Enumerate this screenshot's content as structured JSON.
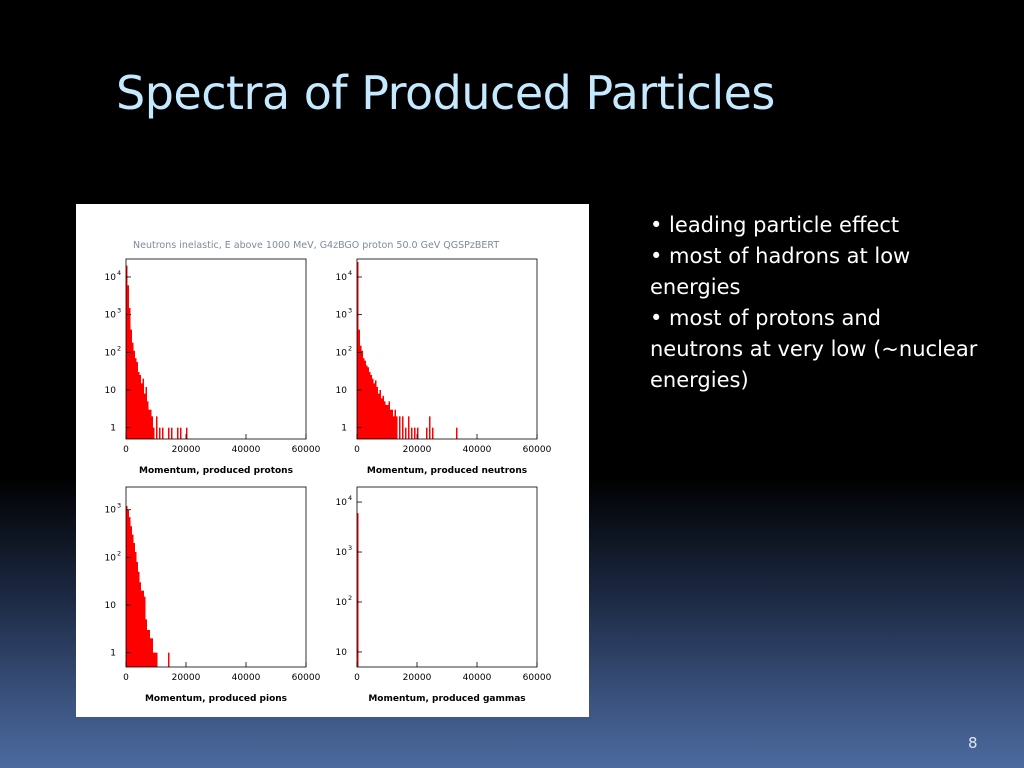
{
  "slide": {
    "title": "Spectra of Produced Particles",
    "bullets": [
      "• leading particle effect",
      "• most of hadrons at low energies",
      "• most of protons and neutrons at very low (~nuclear energies)"
    ],
    "page_number": "8"
  },
  "figure": {
    "header": "Neutrons inelastic, E above 1000 MeV,  G4zBGO proton 50.0 GeV QGSPzBERT",
    "colors": {
      "bar": "#ff0000",
      "axis": "#000000",
      "header": "#7f8a9c"
    }
  },
  "chart_data": [
    {
      "type": "bar",
      "xlabel": "Momentum, produced protons",
      "xlim": [
        0,
        60000
      ],
      "x_ticks": [
        "0",
        "20000",
        "40000",
        "60000"
      ],
      "ylog": true,
      "ylim": [
        0.5,
        30000
      ],
      "y_ticks": [
        {
          "base": "1",
          "exp": ""
        },
        {
          "base": "10",
          "exp": ""
        },
        {
          "base": "10",
          "exp": "2"
        },
        {
          "base": "10",
          "exp": "3"
        },
        {
          "base": "10",
          "exp": "4"
        }
      ],
      "bin_width": 500,
      "bins": [
        [
          0,
          20000
        ],
        [
          500,
          6000
        ],
        [
          1000,
          1500
        ],
        [
          1500,
          400
        ],
        [
          2000,
          180
        ],
        [
          2500,
          110
        ],
        [
          3000,
          70
        ],
        [
          3500,
          55
        ],
        [
          4000,
          30
        ],
        [
          4500,
          25
        ],
        [
          5000,
          15
        ],
        [
          5500,
          20
        ],
        [
          6000,
          8
        ],
        [
          6500,
          12
        ],
        [
          7000,
          5
        ],
        [
          7500,
          3
        ],
        [
          8000,
          3
        ],
        [
          8500,
          2
        ],
        [
          9000,
          1
        ],
        [
          10000,
          2
        ],
        [
          11000,
          1
        ],
        [
          12000,
          1
        ],
        [
          14000,
          1
        ],
        [
          15000,
          1
        ],
        [
          17000,
          1
        ],
        [
          18000,
          1
        ],
        [
          20000,
          1
        ]
      ]
    },
    {
      "type": "bar",
      "xlabel": "Momentum, produced neutrons",
      "xlim": [
        0,
        60000
      ],
      "x_ticks": [
        "0",
        "20000",
        "40000",
        "60000"
      ],
      "ylog": true,
      "ylim": [
        0.5,
        30000
      ],
      "y_ticks": [
        {
          "base": "1",
          "exp": ""
        },
        {
          "base": "10",
          "exp": ""
        },
        {
          "base": "10",
          "exp": "2"
        },
        {
          "base": "10",
          "exp": "3"
        },
        {
          "base": "10",
          "exp": "4"
        }
      ],
      "bin_width": 500,
      "bins": [
        [
          0,
          25000
        ],
        [
          500,
          400
        ],
        [
          1000,
          150
        ],
        [
          1500,
          110
        ],
        [
          2000,
          70
        ],
        [
          2500,
          60
        ],
        [
          3000,
          45
        ],
        [
          3500,
          40
        ],
        [
          4000,
          30
        ],
        [
          4500,
          25
        ],
        [
          5000,
          20
        ],
        [
          5500,
          15
        ],
        [
          6000,
          18
        ],
        [
          6500,
          12
        ],
        [
          7000,
          8
        ],
        [
          7500,
          10
        ],
        [
          8000,
          6
        ],
        [
          8500,
          7
        ],
        [
          9000,
          5
        ],
        [
          9500,
          4
        ],
        [
          10000,
          4
        ],
        [
          10500,
          5
        ],
        [
          11000,
          3
        ],
        [
          11500,
          3
        ],
        [
          12000,
          2
        ],
        [
          12500,
          3
        ],
        [
          13000,
          2
        ],
        [
          14000,
          2
        ],
        [
          15000,
          2
        ],
        [
          16000,
          1
        ],
        [
          17000,
          2
        ],
        [
          18000,
          1
        ],
        [
          19000,
          1
        ],
        [
          20000,
          1
        ],
        [
          23000,
          1
        ],
        [
          24000,
          2
        ],
        [
          25000,
          1
        ],
        [
          33000,
          1
        ]
      ]
    },
    {
      "type": "bar",
      "xlabel": "Momentum, produced pions",
      "xlim": [
        0,
        60000
      ],
      "x_ticks": [
        "0",
        "20000",
        "40000",
        "60000"
      ],
      "ylog": true,
      "ylim": [
        0.5,
        3000
      ],
      "y_ticks": [
        {
          "base": "1",
          "exp": ""
        },
        {
          "base": "10",
          "exp": ""
        },
        {
          "base": "10",
          "exp": "2"
        },
        {
          "base": "10",
          "exp": "3"
        }
      ],
      "bin_width": 500,
      "bins": [
        [
          0,
          1200
        ],
        [
          500,
          1000
        ],
        [
          1000,
          700
        ],
        [
          1500,
          450
        ],
        [
          2000,
          300
        ],
        [
          2500,
          200
        ],
        [
          3000,
          130
        ],
        [
          3500,
          80
        ],
        [
          4000,
          50
        ],
        [
          4500,
          30
        ],
        [
          5000,
          20
        ],
        [
          5500,
          20
        ],
        [
          6000,
          15
        ],
        [
          6500,
          5
        ],
        [
          7000,
          3
        ],
        [
          7500,
          3
        ],
        [
          8000,
          2
        ],
        [
          8500,
          2
        ],
        [
          9000,
          1
        ],
        [
          9500,
          1
        ],
        [
          10000,
          1
        ],
        [
          14000,
          1
        ]
      ]
    },
    {
      "type": "bar",
      "xlabel": "Momentum, produced gammas",
      "xlim": [
        0,
        60000
      ],
      "x_ticks": [
        "0",
        "20000",
        "40000",
        "60000"
      ],
      "ylog": true,
      "ylim": [
        5,
        20000
      ],
      "y_ticks": [
        {
          "base": "10",
          "exp": ""
        },
        {
          "base": "10",
          "exp": "2"
        },
        {
          "base": "10",
          "exp": "3"
        },
        {
          "base": "10",
          "exp": "4"
        }
      ],
      "bin_width": 500,
      "bins": [
        [
          0,
          6000
        ]
      ]
    }
  ]
}
